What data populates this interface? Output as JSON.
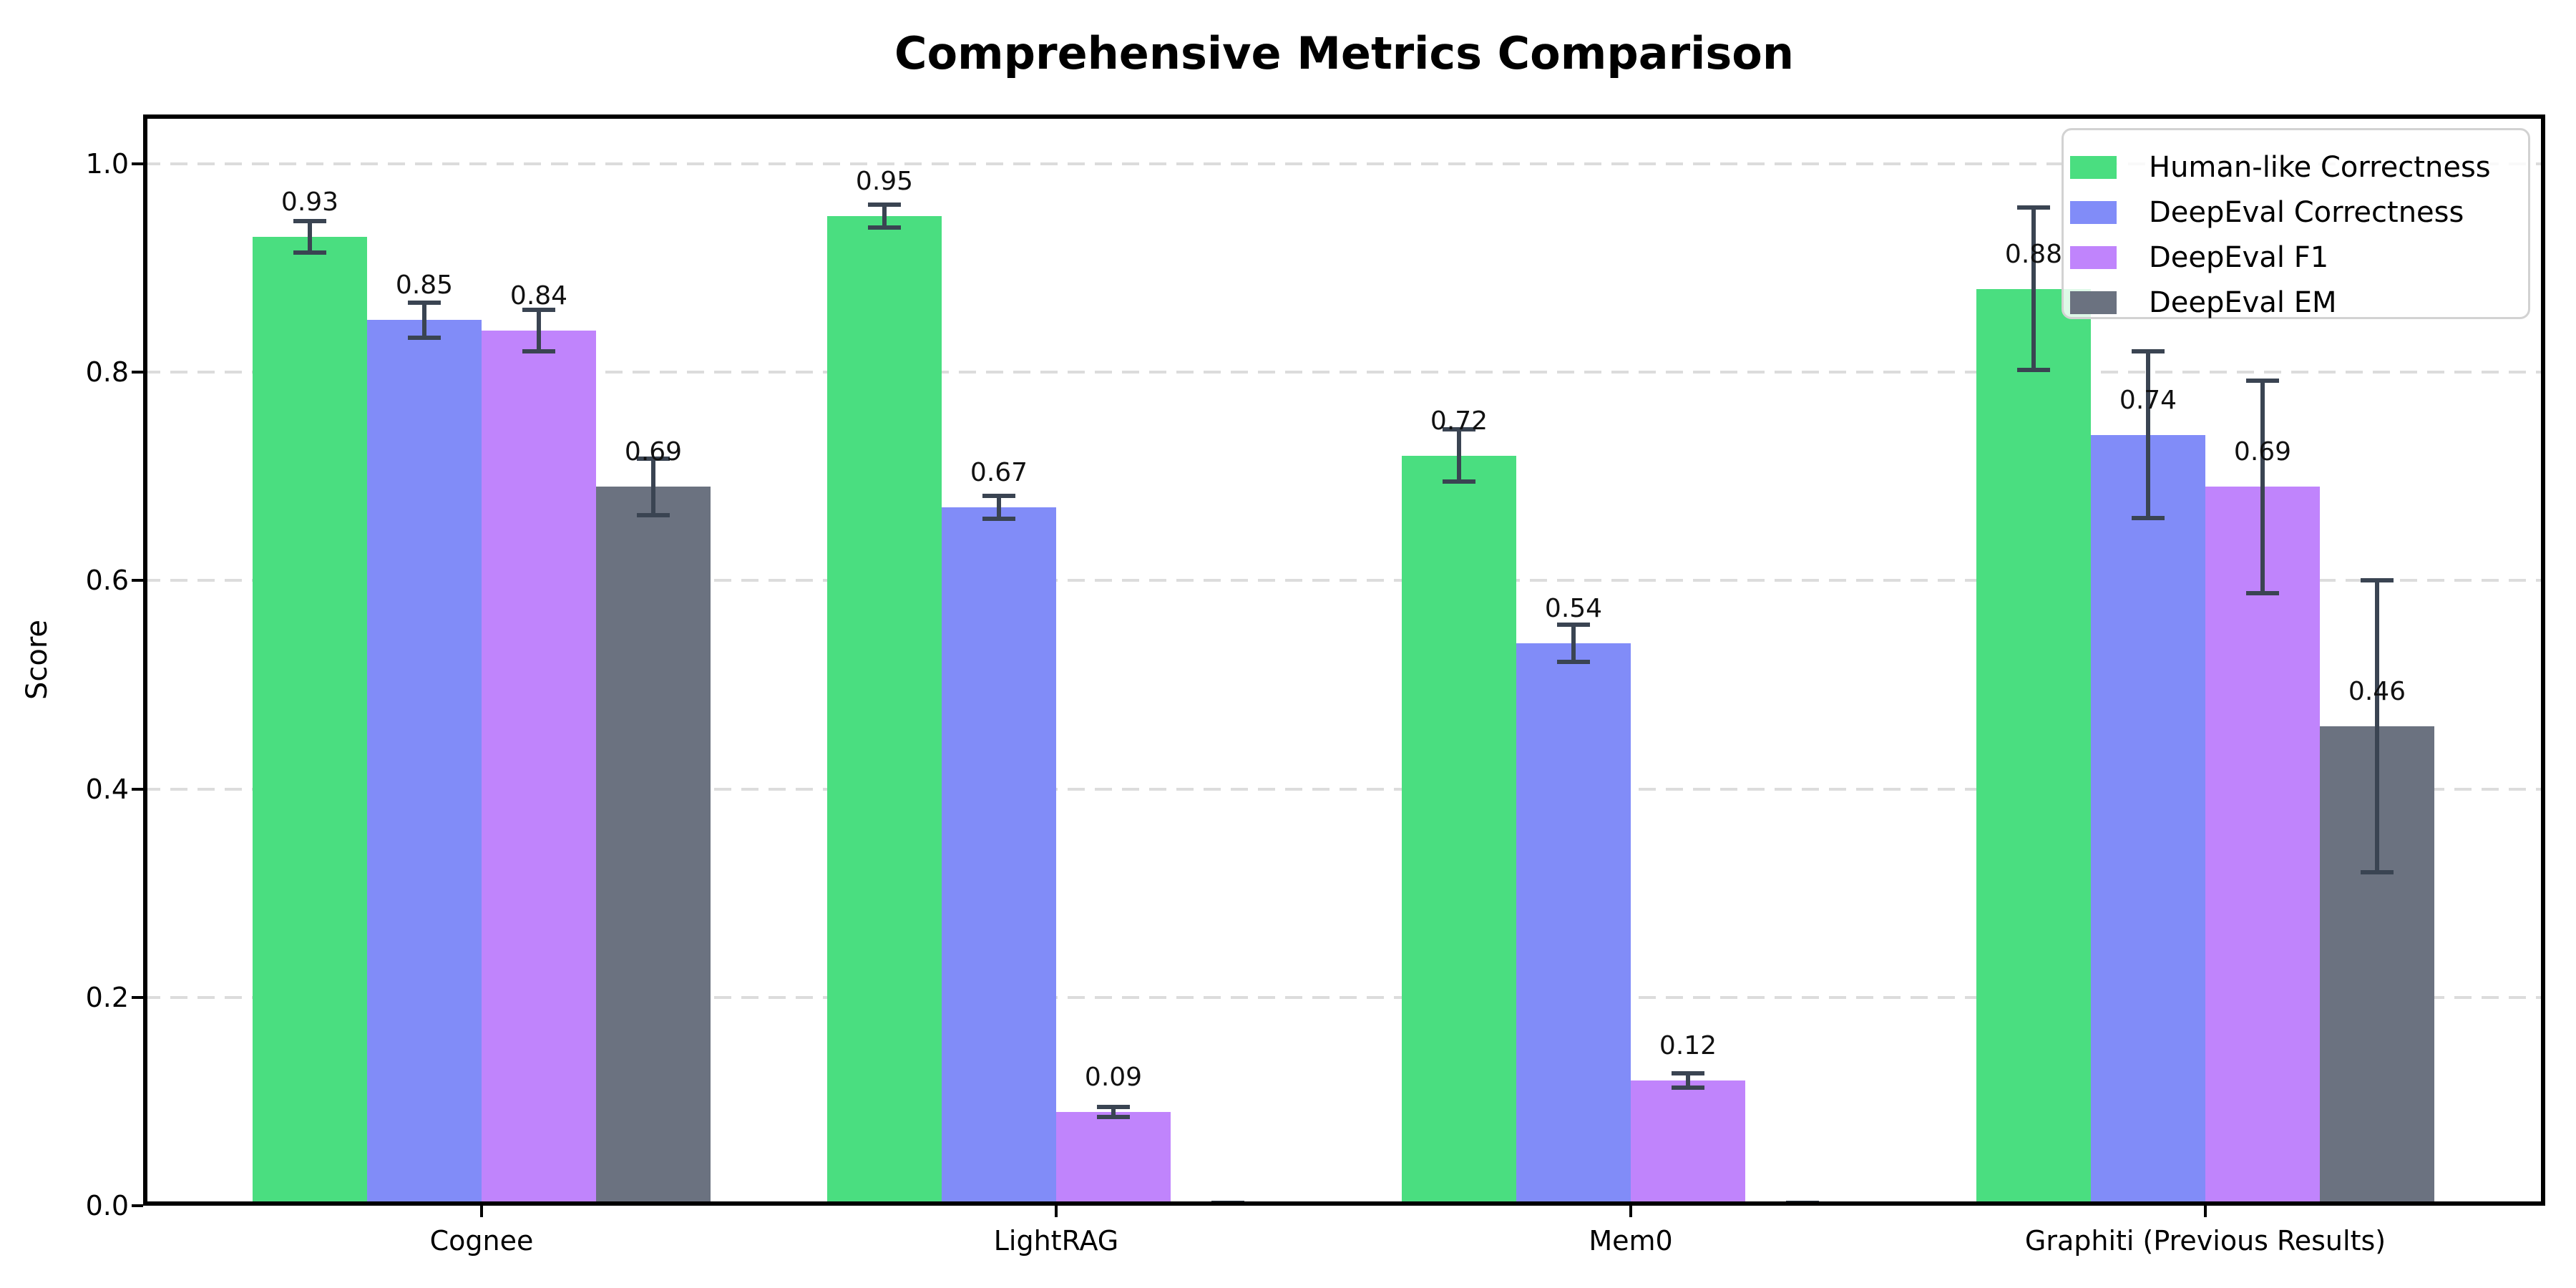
{
  "title": "Comprehensive Metrics Comparison",
  "chart_data": {
    "type": "bar",
    "title": "Comprehensive Metrics Comparison",
    "xlabel": "",
    "ylabel": "Score",
    "categories": [
      "Cognee",
      "LightRAG",
      "Mem0",
      "Graphiti (Previous Results)"
    ],
    "y_ticks": [
      "0.0",
      "0.2",
      "0.4",
      "0.6",
      "0.8",
      "1.0"
    ],
    "ylim": [
      0.0,
      1.047
    ],
    "grid": "horizontal-dashed",
    "legend_position": "upper-right",
    "background_color": "#ffffff",
    "error_bar_color": "#3a4452",
    "series": [
      {
        "name": "Human-like Correctness",
        "color": "#4ade80",
        "values": [
          0.93,
          0.95,
          0.72,
          0.88
        ],
        "errors": [
          0.015,
          0.011,
          0.025,
          0.078
        ],
        "labels": [
          "0.93",
          "0.95",
          "0.72",
          "0.88"
        ]
      },
      {
        "name": "DeepEval Correctness",
        "color": "#818cf8",
        "values": [
          0.85,
          0.67,
          0.54,
          0.74
        ],
        "errors": [
          0.017,
          0.011,
          0.018,
          0.08
        ],
        "labels": [
          "0.85",
          "0.67",
          "0.54",
          "0.74"
        ]
      },
      {
        "name": "DeepEval F1",
        "color": "#c084fc",
        "values": [
          0.84,
          0.09,
          0.12,
          0.69
        ],
        "errors": [
          0.02,
          0.005,
          0.007,
          0.102
        ],
        "labels": [
          "0.84",
          "0.09",
          "0.12",
          "0.69"
        ]
      },
      {
        "name": "DeepEval EM",
        "color": "#6b7280",
        "values": [
          0.69,
          0.0,
          0.0,
          0.46
        ],
        "errors": [
          0.027,
          0.003,
          0.003,
          0.14
        ],
        "labels": [
          "0.69",
          "",
          "",
          "0.46"
        ]
      }
    ]
  }
}
